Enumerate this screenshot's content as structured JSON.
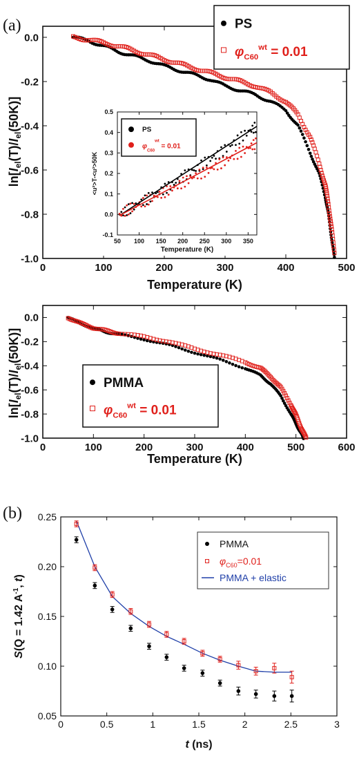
{
  "panel_labels": {
    "a": "(a)",
    "b": "(b)"
  },
  "colors": {
    "ps": "#000000",
    "c60": "#e0201b",
    "fit": "#1f3fa8"
  },
  "chart_data": [
    {
      "id": "ps",
      "type": "scatter",
      "xlabel": "Temperature (K)",
      "ylabel_parts": [
        "ln[",
        "I",
        "el",
        "(T)/",
        "I",
        "el",
        "(50K)]"
      ],
      "xlim": [
        0,
        500
      ],
      "ylim": [
        -1.0,
        0.05
      ],
      "xticks": [
        "0",
        "100",
        "200",
        "300",
        "400",
        "500"
      ],
      "yticks": [
        "0.0",
        "-0.2",
        "-0.4",
        "-0.6",
        "-0.8",
        "-1.0"
      ],
      "legend": {
        "s1": "PS",
        "s2_prefix": "φ",
        "s2_sub": "C60",
        "s2_sup": "wt",
        "s2_suffix": " = 0.01"
      },
      "series": [
        {
          "name": "PS",
          "marker": "dot",
          "x": [
            50,
            75,
            100,
            125,
            150,
            175,
            200,
            225,
            250,
            275,
            300,
            325,
            350,
            375,
            400,
            420,
            440,
            455,
            465,
            470,
            475,
            480
          ],
          "y": [
            0.0,
            -0.015,
            -0.04,
            -0.065,
            -0.085,
            -0.105,
            -0.13,
            -0.15,
            -0.17,
            -0.19,
            -0.22,
            -0.24,
            -0.26,
            -0.29,
            -0.33,
            -0.4,
            -0.52,
            -0.62,
            -0.72,
            -0.8,
            -0.9,
            -1.0
          ]
        },
        {
          "name": "φC60 wt = 0.01",
          "marker": "open-square",
          "x": [
            50,
            75,
            100,
            125,
            150,
            175,
            200,
            225,
            250,
            275,
            300,
            325,
            350,
            375,
            400,
            420,
            440,
            455,
            465,
            470,
            475,
            480
          ],
          "y": [
            0.0,
            -0.01,
            -0.025,
            -0.04,
            -0.06,
            -0.08,
            -0.1,
            -0.12,
            -0.14,
            -0.16,
            -0.18,
            -0.2,
            -0.22,
            -0.25,
            -0.29,
            -0.35,
            -0.45,
            -0.57,
            -0.67,
            -0.75,
            -0.86,
            -0.97
          ]
        }
      ]
    },
    {
      "id": "inset",
      "type": "scatter",
      "xlabel": "Temperature (K)",
      "ylabel": "<u²>T-<u²>50K",
      "xlim": [
        50,
        370
      ],
      "ylim": [
        -0.1,
        0.5
      ],
      "xticks": [
        "50",
        "100",
        "150",
        "200",
        "250",
        "300",
        "350"
      ],
      "yticks": [
        "-0.1",
        "0.0",
        "0.1",
        "0.2",
        "0.3",
        "0.4",
        "0.5"
      ],
      "legend": {
        "s1": "PS",
        "s2_prefix": "φ",
        "s2_sub": "C60",
        "s2_sup": "wt",
        "s2_suffix": " = 0.01"
      },
      "series": [
        {
          "name": "PS",
          "marker": "dot",
          "x": [
            55,
            80,
            105,
            130,
            155,
            180,
            205,
            230,
            255,
            280,
            305,
            330,
            355,
            370
          ],
          "y": [
            0.0,
            0.03,
            0.06,
            0.09,
            0.12,
            0.15,
            0.19,
            0.22,
            0.26,
            0.29,
            0.33,
            0.37,
            0.41,
            0.43
          ]
        },
        {
          "name": "φC60 wt = 0.01",
          "marker": "dot",
          "x": [
            55,
            80,
            105,
            130,
            155,
            180,
            205,
            230,
            255,
            280,
            305,
            330,
            355,
            370
          ],
          "y": [
            0.0,
            0.03,
            0.055,
            0.08,
            0.105,
            0.13,
            0.16,
            0.19,
            0.21,
            0.24,
            0.27,
            0.3,
            0.33,
            0.35
          ]
        }
      ],
      "fits": [
        {
          "series": "PS",
          "x": [
            55,
            370
          ],
          "y": [
            -0.005,
            0.43
          ]
        },
        {
          "series": "φC60 wt = 0.01",
          "x": [
            55,
            370
          ],
          "y": [
            -0.005,
            0.35
          ]
        }
      ]
    },
    {
      "id": "pmma",
      "type": "scatter",
      "xlabel": "Temperature (K)",
      "ylabel_parts": [
        "ln[",
        "I",
        "el",
        "(T)/",
        "I",
        "el",
        "(50K)]"
      ],
      "xlim": [
        0,
        600
      ],
      "ylim": [
        -1.0,
        0.1
      ],
      "xticks": [
        "0",
        "100",
        "200",
        "300",
        "400",
        "500",
        "600"
      ],
      "yticks": [
        "0.0",
        "-0.2",
        "-0.4",
        "-0.6",
        "-0.8",
        "-1.0"
      ],
      "legend": {
        "s1": "PMMA",
        "s2_prefix": "φ",
        "s2_sub": "C60",
        "s2_sup": "wt",
        "s2_suffix": " = 0.01"
      },
      "series": [
        {
          "name": "PMMA",
          "marker": "dot",
          "x": [
            50,
            75,
            100,
            125,
            150,
            200,
            250,
            300,
            350,
            400,
            430,
            450,
            470,
            490,
            500,
            510,
            515
          ],
          "y": [
            0.0,
            -0.05,
            -0.09,
            -0.12,
            -0.14,
            -0.18,
            -0.23,
            -0.29,
            -0.35,
            -0.42,
            -0.48,
            -0.55,
            -0.65,
            -0.8,
            -0.88,
            -0.96,
            -1.0
          ]
        },
        {
          "name": "φC60 wt = 0.01",
          "marker": "open-square",
          "x": [
            50,
            75,
            100,
            125,
            150,
            200,
            250,
            300,
            350,
            400,
            430,
            450,
            470,
            490,
            500,
            510,
            520
          ],
          "y": [
            0.0,
            -0.05,
            -0.085,
            -0.11,
            -0.13,
            -0.16,
            -0.2,
            -0.26,
            -0.31,
            -0.37,
            -0.42,
            -0.49,
            -0.58,
            -0.72,
            -0.81,
            -0.91,
            -1.0
          ]
        }
      ]
    },
    {
      "id": "sq",
      "type": "scatter",
      "xlabel_parts": [
        "t",
        " (ns)"
      ],
      "ylabel": "S(Q = 1.42 Å⁻¹, t)",
      "ylabel_parts": [
        "S",
        "(Q = 1.42 A",
        "-1",
        ", ",
        "t",
        ")"
      ],
      "xlim": [
        0,
        3
      ],
      "ylim": [
        0.05,
        0.25
      ],
      "xticks": [
        "0",
        "0.5",
        "1",
        "1.5",
        "2",
        "2.5",
        "3"
      ],
      "yticks": [
        "0.05",
        "0.10",
        "0.15",
        "0.20",
        "0.25"
      ],
      "legend": {
        "s1": "PMMA",
        "s2_prefix": "φ",
        "s2_sub": "C60",
        "s2_suffix": "=0.01",
        "s3": "PMMA + elastic"
      },
      "series": [
        {
          "name": "PMMA",
          "marker": "dot",
          "x": [
            0.17,
            0.37,
            0.56,
            0.76,
            0.96,
            1.15,
            1.34,
            1.54,
            1.73,
            1.93,
            2.12,
            2.32,
            2.51
          ],
          "y": [
            0.227,
            0.181,
            0.157,
            0.138,
            0.12,
            0.109,
            0.098,
            0.093,
            0.083,
            0.075,
            0.072,
            0.07,
            0.07
          ],
          "err": [
            0.003,
            0.003,
            0.003,
            0.003,
            0.003,
            0.003,
            0.003,
            0.003,
            0.003,
            0.004,
            0.004,
            0.005,
            0.006
          ]
        },
        {
          "name": "φC60=0.01",
          "marker": "open-square",
          "x": [
            0.17,
            0.37,
            0.56,
            0.76,
            0.96,
            1.15,
            1.34,
            1.54,
            1.73,
            1.93,
            2.12,
            2.32,
            2.51
          ],
          "y": [
            0.243,
            0.199,
            0.172,
            0.155,
            0.142,
            0.132,
            0.125,
            0.113,
            0.107,
            0.101,
            0.095,
            0.098,
            0.089
          ],
          "err": [
            0.003,
            0.003,
            0.003,
            0.003,
            0.003,
            0.003,
            0.003,
            0.003,
            0.003,
            0.004,
            0.004,
            0.005,
            0.006
          ]
        },
        {
          "name": "PMMA + elastic",
          "marker": "line",
          "x": [
            0.17,
            0.37,
            0.56,
            0.76,
            0.96,
            1.15,
            1.34,
            1.54,
            1.73,
            1.93,
            2.12,
            2.32,
            2.51
          ],
          "y": [
            0.246,
            0.2,
            0.17,
            0.153,
            0.14,
            0.13,
            0.122,
            0.113,
            0.106,
            0.1,
            0.095,
            0.094,
            0.094
          ]
        }
      ]
    }
  ]
}
